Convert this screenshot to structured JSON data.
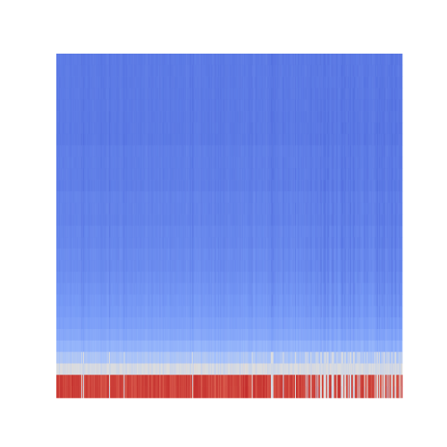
{
  "chart_data": {
    "type": "heatmap",
    "title": "",
    "xlabel": "",
    "ylabel": "",
    "colormap": "coolwarm",
    "colorbar": false,
    "axes_visible": false,
    "value_range": [
      0,
      1
    ],
    "n_columns": 400,
    "row_profiles": [
      0.12,
      0.12,
      0.12,
      0.12,
      0.12,
      0.12,
      0.12,
      0.12,
      0.13,
      0.13,
      0.13,
      0.13,
      0.14,
      0.14,
      0.14,
      0.15,
      0.15,
      0.16,
      0.16,
      0.17,
      0.18,
      0.19,
      0.2,
      0.22,
      0.25,
      0.3,
      0.38,
      0.48,
      0.92,
      0.92
    ],
    "anomaly_zones": [
      {
        "from_fraction": 0.72,
        "to_fraction": 0.88,
        "intensity": 0.65
      },
      {
        "from_fraction": 0.92,
        "to_fraction": 1.0,
        "intensity": 0.75
      }
    ],
    "grid": false
  }
}
